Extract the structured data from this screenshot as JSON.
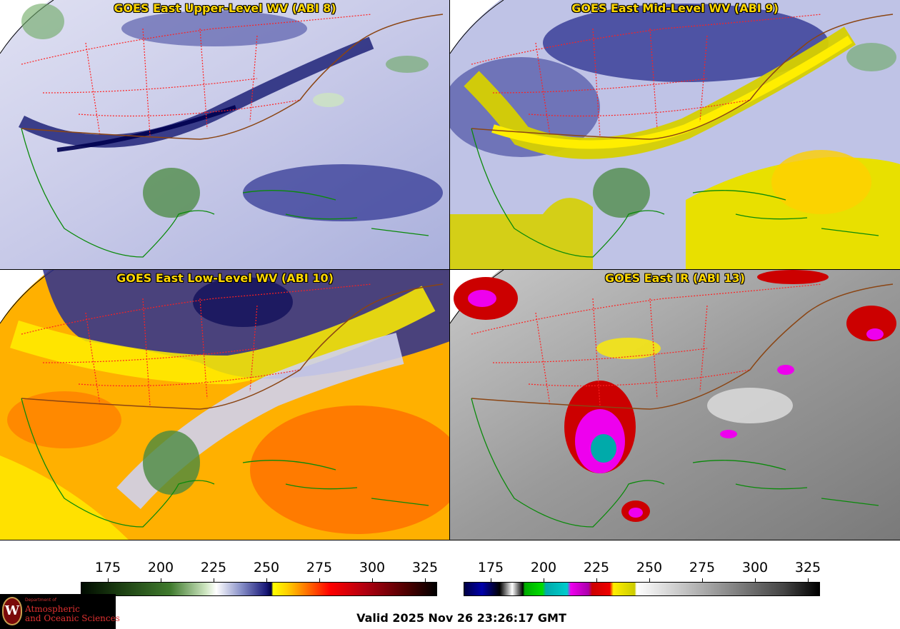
{
  "panels": [
    {
      "id": "upper",
      "title": "GOES East Upper-Level WV (ABI 8)",
      "scheme": "wv-upper"
    },
    {
      "id": "mid",
      "title": "GOES East Mid-Level WV (ABI 9)",
      "scheme": "wv-mid"
    },
    {
      "id": "low",
      "title": "GOES East Low-Level WV (ABI 10)",
      "scheme": "wv-low"
    },
    {
      "id": "ir",
      "title": "GOES East IR (ABI 13)",
      "scheme": "ir"
    }
  ],
  "colorbars": {
    "water_vapor": {
      "ticks": [
        "175",
        "200",
        "225",
        "250",
        "275",
        "300",
        "325"
      ]
    },
    "infrared": {
      "ticks": [
        "175",
        "200",
        "225",
        "250",
        "275",
        "300",
        "325"
      ]
    }
  },
  "valid_time": "Valid 2025 Nov 26 23:26:17 GMT",
  "logo": {
    "department": "Department of",
    "line1": "Atmospheric",
    "line2": "and Oceanic Sciences",
    "seal_letter": "W"
  },
  "colors": {
    "state_borders": "#ff2020",
    "country_borders": "#8b4513",
    "coastlines": "#0a8a0a",
    "title_text": "#ffd700"
  }
}
